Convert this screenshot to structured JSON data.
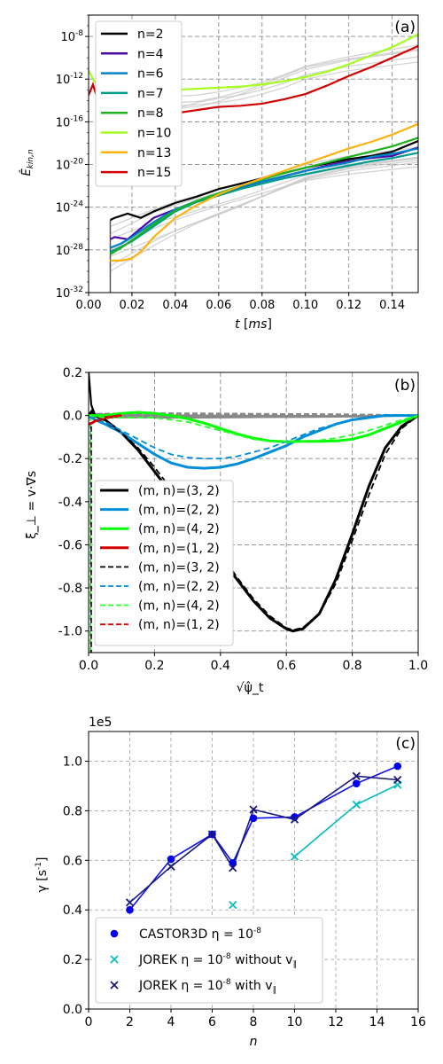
{
  "chart_data": [
    {
      "panel": "(a)",
      "type": "line",
      "ylabel": "Ê_{kin,n}",
      "xlabel": "t [ms]",
      "yscale": "log",
      "xlim": [
        0.0,
        0.152
      ],
      "ylim_exp": [
        -32,
        -6
      ],
      "xticks": [
        "0.00",
        "0.02",
        "0.04",
        "0.06",
        "0.08",
        "0.10",
        "0.12",
        "0.14"
      ],
      "yticks": [
        "10^-32",
        "10^-28",
        "10^-24",
        "10^-20",
        "10^-16",
        "10^-12",
        "10^-8"
      ],
      "grid": true,
      "legend_position": "top-left",
      "series": [
        {
          "name": "n=2",
          "color": "#000000",
          "x": [
            0.01,
            0.012,
            0.018,
            0.024,
            0.03,
            0.04,
            0.05,
            0.06,
            0.07,
            0.08,
            0.09,
            0.1,
            0.11,
            0.12,
            0.13,
            0.14,
            0.152
          ],
          "y": [
            -25.2,
            -25,
            -24.6,
            -25,
            -24.4,
            -23.6,
            -23,
            -22.3,
            -21.8,
            -21.3,
            -20.8,
            -20.3,
            -19.9,
            -19.5,
            -19.2,
            -18.8,
            -17.8
          ]
        },
        {
          "name": "n=4",
          "color": "#4b0aa5",
          "x": [
            0.01,
            0.012,
            0.018,
            0.024,
            0.03,
            0.04,
            0.05,
            0.06,
            0.07,
            0.08,
            0.09,
            0.1,
            0.11,
            0.12,
            0.13,
            0.14,
            0.152
          ],
          "y": [
            -27,
            -26.8,
            -27,
            -26,
            -25,
            -24.2,
            -23.5,
            -22.8,
            -22.2,
            -21.6,
            -21.1,
            -20.6,
            -20.1,
            -19.7,
            -19.4,
            -19.2,
            -18.4
          ]
        },
        {
          "name": "n=6",
          "color": "#0080c8",
          "x": [
            0.01,
            0.015,
            0.02,
            0.03,
            0.04,
            0.05,
            0.06,
            0.07,
            0.08,
            0.09,
            0.1,
            0.11,
            0.12,
            0.13,
            0.14,
            0.152
          ],
          "y": [
            -27.8,
            -27.4,
            -26.8,
            -25.4,
            -24.2,
            -23.4,
            -22.7,
            -22.1,
            -21.6,
            -21.1,
            -20.6,
            -20.2,
            -19.8,
            -19.3,
            -19,
            -18.5
          ]
        },
        {
          "name": "n=7",
          "color": "#009c8c",
          "x": [
            0.01,
            0.015,
            0.02,
            0.03,
            0.04,
            0.05,
            0.06,
            0.07,
            0.08,
            0.09,
            0.1,
            0.11,
            0.12,
            0.13,
            0.14,
            0.152
          ],
          "y": [
            -28.2,
            -27.7,
            -27.2,
            -25.8,
            -24.4,
            -23.5,
            -22.9,
            -22.3,
            -21.8,
            -21.3,
            -20.9,
            -20.5,
            -20.1,
            -19.7,
            -19.4,
            -18.9
          ]
        },
        {
          "name": "n=8",
          "color": "#1db31d",
          "x": [
            0.01,
            0.015,
            0.02,
            0.03,
            0.04,
            0.05,
            0.06,
            0.07,
            0.08,
            0.09,
            0.1,
            0.11,
            0.12,
            0.13,
            0.14,
            0.152
          ],
          "y": [
            -28.4,
            -27.8,
            -27.1,
            -25.6,
            -24.3,
            -23.4,
            -22.7,
            -22,
            -21.4,
            -20.8,
            -20.3,
            -19.8,
            -19.3,
            -18.8,
            -18.3,
            -17.5
          ]
        },
        {
          "name": "n=10",
          "color": "#a4ff1d",
          "x": [
            0,
            0.002,
            0.004,
            0.01,
            0.02,
            0.03,
            0.04,
            0.05,
            0.06,
            0.07,
            0.08,
            0.09,
            0.1,
            0.11,
            0.12,
            0.13,
            0.14,
            0.152
          ],
          "y": [
            -11.2,
            -12,
            -12.6,
            -12.8,
            -12.9,
            -13,
            -13,
            -12.9,
            -12.8,
            -12.7,
            -12.5,
            -12.2,
            -11.8,
            -11.3,
            -10.6,
            -9.8,
            -9,
            -7.8
          ]
        },
        {
          "name": "n=13",
          "color": "#ffb10d",
          "x": [
            0.01,
            0.015,
            0.02,
            0.025,
            0.03,
            0.04,
            0.05,
            0.06,
            0.07,
            0.08,
            0.09,
            0.1,
            0.11,
            0.12,
            0.13,
            0.14,
            0.152
          ],
          "y": [
            -29,
            -29,
            -28.8,
            -28,
            -26.8,
            -25,
            -23.8,
            -22.8,
            -22,
            -21.3,
            -20.6,
            -19.9,
            -19.2,
            -18.5,
            -17.9,
            -17.2,
            -16.2
          ]
        },
        {
          "name": "n=15",
          "color": "#d00000",
          "x": [
            0,
            0.002,
            0.004,
            0.006,
            0.008,
            0.01,
            0.02,
            0.03,
            0.04,
            0.05,
            0.06,
            0.07,
            0.08,
            0.09,
            0.1,
            0.11,
            0.12,
            0.13,
            0.14,
            0.152
          ],
          "y": [
            -13.5,
            -12.5,
            -13.8,
            -14.8,
            -15,
            -15.2,
            -15.3,
            -15.3,
            -15.2,
            -14.9,
            -14.6,
            -14.5,
            -14.3,
            -13.9,
            -13.4,
            -12.6,
            -11.7,
            -10.9,
            -10,
            -8.9
          ]
        }
      ],
      "background_series_color": "#c8c8c8",
      "background_series": [
        [
          -26.5,
          -25.5,
          -24.5,
          -23.8,
          -23.2,
          -22.6,
          -22,
          -21.5,
          -21,
          -20.5,
          -20,
          -19.4
        ],
        [
          -28,
          -27,
          -26,
          -25.2,
          -24.5,
          -23.9,
          -23.3,
          -22.7,
          -22.1,
          -21.5,
          -20.9,
          -20.2
        ],
        [
          -29.5,
          -28.3,
          -27.2,
          -26.2,
          -25.4,
          -24.6,
          -23.8,
          -23,
          -22.2,
          -21.4,
          -20.6,
          -19.8
        ],
        [
          -27,
          -26.2,
          -25.5,
          -24.9,
          -24.3,
          -23.7,
          -23.1,
          -22.4,
          -21.7,
          -21,
          -20.2,
          -19.3
        ],
        [
          -25.8,
          -25,
          -24.2,
          -23.5,
          -22.9,
          -22.3,
          -21.8,
          -21.2,
          -20.6,
          -20,
          -19.2,
          -18.4
        ],
        [
          -30,
          -28.8,
          -27.6,
          -26.5,
          -25.5,
          -24.7,
          -23.9,
          -23,
          -22.1,
          -21.2,
          -20.3,
          -19.4
        ],
        [
          -28.6,
          -27.8,
          -27,
          -26.2,
          -25.4,
          -24.6,
          -23.8,
          -23,
          -22.2,
          -21.3,
          -20.4,
          -19.6
        ],
        [
          -13.8,
          -14.2,
          -14.6,
          -14.5,
          -14.4,
          -14.2,
          -13.9,
          -13.4,
          -12.8,
          -12,
          -11.2,
          -10.4
        ],
        [
          -12.8,
          -13.3,
          -13.9,
          -14.2,
          -14.1,
          -13.7,
          -13.2,
          -12.5,
          -11.7,
          -10.9,
          -10.1,
          -9.2
        ],
        [
          -14.5,
          -15.2,
          -15.5,
          -14.8,
          -14.2,
          -13.8,
          -13.5,
          -13,
          -12.4,
          -11.6,
          -10.8,
          -9.9
        ],
        [
          -11.5,
          -12.5,
          -13.2,
          -13.6,
          -13.5,
          -13.2,
          -12.8,
          -12.3,
          -11.6,
          -10.8,
          -9.9,
          -8.8
        ],
        [
          -13.2,
          -13.8,
          -14.4,
          -14.7,
          -14.6,
          -14.1,
          -13.4,
          -12.7,
          -11.9,
          -11.1,
          -10.2,
          -9.3
        ]
      ],
      "background_series_x": [
        0.01,
        0.02,
        0.03,
        0.04,
        0.05,
        0.06,
        0.07,
        0.08,
        0.09,
        0.1,
        0.12,
        0.152
      ]
    },
    {
      "panel": "(b)",
      "type": "line",
      "ylabel": "ξ_⊥ = v·∇s",
      "xlabel": "√ψ̂_t",
      "xlim": [
        0,
        1
      ],
      "ylim": [
        -1.1,
        0.2
      ],
      "xticks": [
        "0.0",
        "0.2",
        "0.4",
        "0.6",
        "0.8",
        "1.0"
      ],
      "yticks": [
        "-1.0",
        "-0.8",
        "-0.6",
        "-0.4",
        "-0.2",
        "0.0",
        "0.2"
      ],
      "grid": true,
      "legend_position": "lower-left",
      "series": [
        {
          "name": "(m, n)=(3, 2)",
          "style": "solid",
          "color": "#000000",
          "x": [
            0,
            0.01,
            0.02,
            0.05,
            0.1,
            0.15,
            0.2,
            0.25,
            0.3,
            0.35,
            0.4,
            0.45,
            0.5,
            0.55,
            0.6,
            0.62,
            0.65,
            0.7,
            0.75,
            0.8,
            0.85,
            0.9,
            0.95,
            1.0
          ],
          "y": [
            0.0,
            0.02,
            0.0,
            -0.02,
            -0.08,
            -0.16,
            -0.26,
            -0.36,
            -0.46,
            -0.56,
            -0.66,
            -0.76,
            -0.86,
            -0.94,
            -0.99,
            -1.0,
            -0.99,
            -0.92,
            -0.76,
            -0.55,
            -0.33,
            -0.15,
            -0.05,
            0.0
          ]
        },
        {
          "name": "(m, n)=(2, 2)",
          "style": "solid",
          "color": "#008ed8",
          "x": [
            0,
            0.02,
            0.05,
            0.1,
            0.15,
            0.2,
            0.25,
            0.3,
            0.35,
            0.4,
            0.45,
            0.5,
            0.55,
            0.6,
            0.65,
            0.7,
            0.75,
            0.8,
            0.85,
            0.9,
            0.95,
            1.0
          ],
          "y": [
            0,
            -0.02,
            -0.04,
            -0.08,
            -0.13,
            -0.18,
            -0.22,
            -0.24,
            -0.245,
            -0.24,
            -0.225,
            -0.2,
            -0.17,
            -0.14,
            -0.1,
            -0.07,
            -0.04,
            -0.02,
            -0.01,
            0,
            0,
            0
          ]
        },
        {
          "name": "(m, n)=(4, 2)",
          "style": "solid",
          "color": "#00ff00",
          "x": [
            0,
            0.05,
            0.1,
            0.15,
            0.2,
            0.25,
            0.3,
            0.35,
            0.4,
            0.45,
            0.5,
            0.55,
            0.6,
            0.65,
            0.7,
            0.75,
            0.8,
            0.85,
            0.9,
            0.95,
            1.0
          ],
          "y": [
            0,
            0.0,
            0.01,
            0.015,
            0.01,
            0.0,
            -0.015,
            -0.035,
            -0.06,
            -0.085,
            -0.105,
            -0.118,
            -0.122,
            -0.12,
            -0.12,
            -0.118,
            -0.11,
            -0.09,
            -0.06,
            -0.03,
            0
          ]
        },
        {
          "name": "(m, n)=(1, 2)",
          "style": "solid",
          "color": "#d40000",
          "x": [
            0,
            0.01,
            0.02,
            0.05,
            0.1
          ],
          "y": [
            -0.04,
            -0.035,
            -0.025,
            -0.01,
            0.0
          ]
        },
        {
          "name": "(m, n)=(3, 2)",
          "style": "dashed",
          "color": "#000000",
          "x": [
            0,
            0.02,
            0.05,
            0.1,
            0.15,
            0.2,
            0.25,
            0.3,
            0.35,
            0.4,
            0.45,
            0.5,
            0.55,
            0.6,
            0.62,
            0.65,
            0.7,
            0.75,
            0.8,
            0.85,
            0.9,
            0.95,
            1.0
          ],
          "y": [
            0,
            -0.01,
            -0.03,
            -0.08,
            -0.15,
            -0.24,
            -0.34,
            -0.44,
            -0.54,
            -0.64,
            -0.75,
            -0.85,
            -0.93,
            -0.985,
            -0.995,
            -0.985,
            -0.92,
            -0.78,
            -0.58,
            -0.37,
            -0.18,
            -0.06,
            0
          ]
        },
        {
          "name": "(m, n)=(2, 2)",
          "style": "dashed",
          "color": "#008ed8",
          "x": [
            0,
            0.05,
            0.1,
            0.15,
            0.2,
            0.25,
            0.3,
            0.35,
            0.4,
            0.45,
            0.5,
            0.55,
            0.6,
            0.65,
            0.7,
            0.75,
            0.8,
            0.85,
            0.9,
            0.95,
            1.0
          ],
          "y": [
            0,
            -0.03,
            -0.07,
            -0.11,
            -0.15,
            -0.18,
            -0.195,
            -0.2,
            -0.2,
            -0.19,
            -0.17,
            -0.15,
            -0.12,
            -0.09,
            -0.06,
            -0.04,
            -0.02,
            -0.01,
            0,
            0,
            0
          ]
        },
        {
          "name": "(m, n)=(4, 2)",
          "style": "dashed",
          "color": "#28ff28",
          "x": [
            0,
            0.05,
            0.1,
            0.15,
            0.2,
            0.25,
            0.3,
            0.35,
            0.4,
            0.45,
            0.5,
            0.55,
            0.6,
            0.65,
            0.7,
            0.75,
            0.8,
            0.85,
            0.9,
            0.95,
            1.0
          ],
          "y": [
            0,
            -0.01,
            -0.01,
            -0.01,
            -0.01,
            -0.02,
            -0.03,
            -0.05,
            -0.07,
            -0.09,
            -0.11,
            -0.12,
            -0.12,
            -0.12,
            -0.115,
            -0.105,
            -0.09,
            -0.07,
            -0.045,
            -0.02,
            0
          ]
        },
        {
          "name": "(m, n)=(1, 2)",
          "style": "dashed",
          "color": "#d40000",
          "x": [
            0,
            0.02,
            0.05,
            0.1
          ],
          "y": [
            -0.04,
            -0.03,
            -0.015,
            0.0
          ]
        }
      ]
    },
    {
      "panel": "(c)",
      "type": "scatter",
      "ylabel": "γ [s^-1]",
      "xlabel": "n",
      "offset_label": "1e5",
      "xlim": [
        0,
        16
      ],
      "ylim": [
        0.0,
        1.12
      ],
      "xticks": [
        "0",
        "2",
        "4",
        "6",
        "8",
        "10",
        "12",
        "14",
        "16"
      ],
      "yticks": [
        "0.0",
        "0.2",
        "0.4",
        "0.6",
        "0.8",
        "1.0"
      ],
      "grid": true,
      "legend_position": "lower-left",
      "series": [
        {
          "name": "CASTOR3D η = 10^-8",
          "marker": "circle",
          "color": "#0000ee",
          "x": [
            2,
            4,
            6,
            7,
            8,
            10,
            13,
            15
          ],
          "y": [
            0.4,
            0.605,
            0.705,
            0.59,
            0.77,
            0.775,
            0.91,
            0.98
          ]
        },
        {
          "name": "JOREK η = 10^-8 without v_∥",
          "marker": "x",
          "color": "#00c0c0",
          "x": [
            7,
            10,
            13,
            15
          ],
          "y": [
            0.42,
            0.615,
            0.825,
            0.905
          ]
        },
        {
          "name": "JOREK η = 10^-8 with v_∥",
          "marker": "x",
          "color": "#1a1a7a",
          "x": [
            2,
            4,
            6,
            7,
            8,
            10,
            13,
            15
          ],
          "y": [
            0.43,
            0.575,
            0.705,
            0.57,
            0.805,
            0.765,
            0.94,
            0.925
          ]
        }
      ]
    }
  ]
}
